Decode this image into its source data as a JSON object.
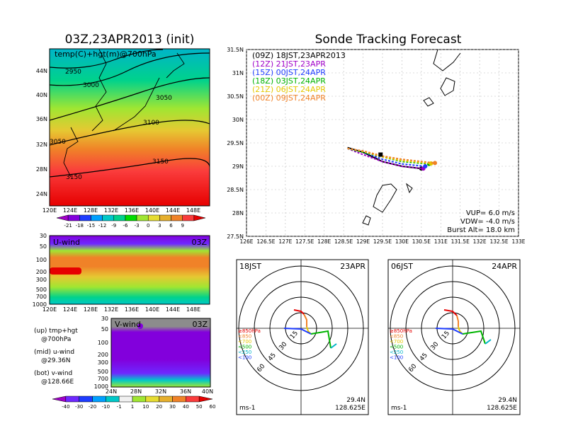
{
  "header": {
    "left_title": "03Z,23APR2013 (init)",
    "right_title": "Sonde Tracking Forecast"
  },
  "panel_map": {
    "label": "temp(C)+hgt(m)@700hPa",
    "contour_labels": [
      "2950",
      "3000",
      "3050",
      "3100",
      "3050",
      "3150",
      "3150"
    ],
    "xticks": [
      "120E",
      "124E",
      "128E",
      "132E",
      "136E",
      "140E",
      "144E",
      "148E"
    ],
    "yticks": [
      "44N",
      "40N",
      "36N",
      "32N",
      "28N",
      "24N"
    ],
    "colorbar_labels": [
      "-21",
      "-18",
      "-15",
      "-12",
      "-9",
      "-6",
      "-3",
      "0",
      "3",
      "6",
      "9"
    ],
    "colorbar_colors": [
      "#a000c8",
      "#8200dc",
      "#1e3cff",
      "#00a0ff",
      "#00c8c8",
      "#00d28c",
      "#00dc00",
      "#a0e632",
      "#e6dc32",
      "#e6af2d",
      "#f08228",
      "#fa3c3c",
      "#e60000"
    ]
  },
  "panel_u": {
    "label": "U-wind",
    "time": "03Z",
    "yticks": [
      "30",
      "50",
      "100",
      "200",
      "300",
      "500",
      "700",
      "1000"
    ],
    "xticks": [
      "120E",
      "124E",
      "128E",
      "132E",
      "136E",
      "140E",
      "144E",
      "148E"
    ]
  },
  "panel_v": {
    "label": "V-wind",
    "time": "03Z",
    "yticks": [
      "30",
      "50",
      "100",
      "200",
      "300",
      "500",
      "700",
      "1000"
    ],
    "xticks": [
      "24N",
      "28N",
      "32N",
      "36N",
      "40N"
    ]
  },
  "legend_left": {
    "line1": "(up) tmp+hgt",
    "line2": "@700hPa",
    "line3": "(mid) u-wind",
    "line4": "@29.36N",
    "line5": "(bot) v-wind",
    "line6": "@128.66E"
  },
  "wind_colorbar": {
    "labels": [
      "-40",
      "-30",
      "-20",
      "-10",
      "-1",
      "1",
      "10",
      "20",
      "30",
      "40",
      "50",
      "60"
    ],
    "colors": [
      "#a000c8",
      "#6e28ff",
      "#1e3cff",
      "#00a0ff",
      "#00c8c8",
      "#f0f0f0",
      "#a0e632",
      "#e6dc32",
      "#e6af2d",
      "#f08228",
      "#fa3c3c",
      "#e60000"
    ]
  },
  "track_panel": {
    "legend": [
      {
        "label": "(09Z)  18JST,23APR2013",
        "color": "#000000"
      },
      {
        "label": "(12Z)  21JST,23APR",
        "color": "#a000c8"
      },
      {
        "label": "(15Z)  00JST,24APR",
        "color": "#1e3cff"
      },
      {
        "label": "(18Z)  03JST,24APR",
        "color": "#00b400"
      },
      {
        "label": "(21Z)  06JST,24APR",
        "color": "#e6c800"
      },
      {
        "label": "(00Z)  09JST,24APR",
        "color": "#f08228"
      }
    ],
    "xticks": [
      "126E",
      "126.5E",
      "127E",
      "127.5E",
      "128E",
      "128.5E",
      "129E",
      "129.5E",
      "130E",
      "130.5E",
      "131E",
      "131.5E",
      "132E",
      "132.5E",
      "133E"
    ],
    "yticks": [
      "31.5N",
      "31N",
      "30.5N",
      "30N",
      "29.5N",
      "29N",
      "28.5N",
      "28N",
      "27.5N"
    ],
    "params": [
      "VUP=  6.0  m/s",
      "VDW= -4.0  m/s",
      "Burst Alt=  18.0  km"
    ]
  },
  "polar_left": {
    "time": "18JST",
    "date": "23APR",
    "ring_labels": [
      "15",
      "30",
      "45",
      "60"
    ],
    "lat": "29.4N",
    "lon": "128.625E",
    "unit": "ms-1",
    "levels": [
      "≥850hPa",
      "<850",
      "<700",
      "<500",
      "<250",
      "<100"
    ]
  },
  "polar_right": {
    "time": "06JST",
    "date": "24APR",
    "ring_labels": [
      "15",
      "30",
      "45",
      "60"
    ],
    "lat": "29.4N",
    "lon": "128.625E",
    "unit": "ms-1",
    "levels": [
      "≥850hPa",
      "<850",
      "<700",
      "<500",
      "<250",
      "<100"
    ]
  },
  "level_colors": [
    "#e60000",
    "#f08228",
    "#e6c800",
    "#00b400",
    "#00b4c8",
    "#1e3cff"
  ],
  "chart_data": [
    {
      "type": "line",
      "title": "Sonde Tracking Forecast",
      "xlim": [
        126,
        133
      ],
      "ylim": [
        27.5,
        31.5
      ],
      "series": [
        {
          "name": "(09Z)  18JST,23APR2013",
          "x": [
            128.6,
            129.0,
            129.5,
            130.0,
            130.5
          ],
          "y": [
            29.4,
            29.3,
            29.1,
            29.0,
            28.95
          ]
        },
        {
          "name": "(12Z)  21JST,23APR",
          "x": [
            128.6,
            129.0,
            129.5,
            130.0,
            130.55
          ],
          "y": [
            29.38,
            29.25,
            29.1,
            29.0,
            28.95
          ]
        },
        {
          "name": "(15Z)  00JST,24APR",
          "x": [
            128.6,
            129.0,
            129.5,
            130.0,
            130.6
          ],
          "y": [
            29.38,
            29.3,
            29.15,
            29.05,
            29.0
          ]
        },
        {
          "name": "(18Z)  03JST,24APR",
          "x": [
            128.6,
            129.0,
            129.5,
            130.0,
            130.7
          ],
          "y": [
            29.38,
            29.3,
            29.2,
            29.1,
            29.05
          ]
        },
        {
          "name": "(21Z)  06JST,24APR",
          "x": [
            128.6,
            129.0,
            129.5,
            130.0,
            130.75
          ],
          "y": [
            29.38,
            29.32,
            29.2,
            29.12,
            29.06
          ]
        },
        {
          "name": "(00Z)  09JST,24APR",
          "x": [
            128.6,
            129.0,
            129.5,
            130.0,
            130.85
          ],
          "y": [
            29.38,
            29.33,
            29.22,
            29.15,
            29.07
          ]
        }
      ]
    }
  ]
}
